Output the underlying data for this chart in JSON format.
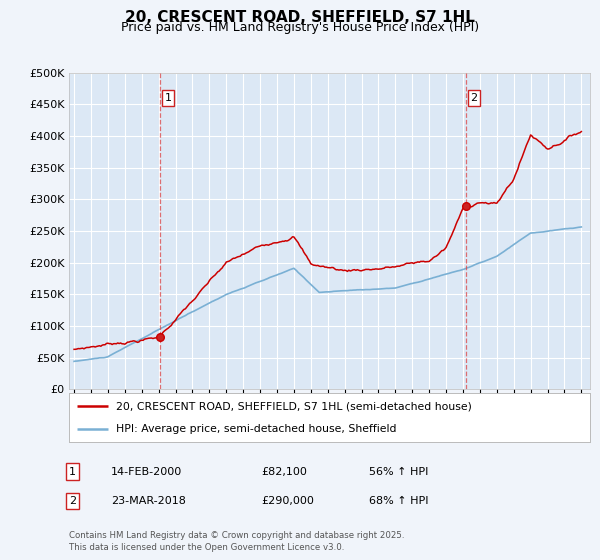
{
  "title": "20, CRESCENT ROAD, SHEFFIELD, S7 1HL",
  "subtitle": "Price paid vs. HM Land Registry's House Price Index (HPI)",
  "title_fontsize": 11,
  "subtitle_fontsize": 9,
  "bg_color": "#f0f4fa",
  "plot_bg_color": "#dce8f5",
  "grid_color": "#ffffff",
  "line1_color": "#cc0000",
  "line2_color": "#7ab0d4",
  "xlim": [
    1994.7,
    2025.5
  ],
  "ylim": [
    0,
    500000
  ],
  "yticks": [
    0,
    50000,
    100000,
    150000,
    200000,
    250000,
    300000,
    350000,
    400000,
    450000,
    500000
  ],
  "ytick_labels": [
    "£0",
    "£50K",
    "£100K",
    "£150K",
    "£200K",
    "£250K",
    "£300K",
    "£350K",
    "£400K",
    "£450K",
    "£500K"
  ],
  "xticks": [
    1995,
    1996,
    1997,
    1998,
    1999,
    2000,
    2001,
    2002,
    2003,
    2004,
    2005,
    2006,
    2007,
    2008,
    2009,
    2010,
    2011,
    2012,
    2013,
    2014,
    2015,
    2016,
    2017,
    2018,
    2019,
    2020,
    2021,
    2022,
    2023,
    2024,
    2025
  ],
  "vline1_x": 2000.1,
  "vline2_x": 2018.2,
  "marker1_x": 2000.1,
  "marker1_y": 82100,
  "marker2_x": 2018.2,
  "marker2_y": 290000,
  "legend_line1": "20, CRESCENT ROAD, SHEFFIELD, S7 1HL (semi-detached house)",
  "legend_line2": "HPI: Average price, semi-detached house, Sheffield",
  "footer_text": "Contains HM Land Registry data © Crown copyright and database right 2025.\nThis data is licensed under the Open Government Licence v3.0.",
  "table_row1": [
    "1",
    "14-FEB-2000",
    "£82,100",
    "56% ↑ HPI"
  ],
  "table_row2": [
    "2",
    "23-MAR-2018",
    "£290,000",
    "68% ↑ HPI"
  ]
}
